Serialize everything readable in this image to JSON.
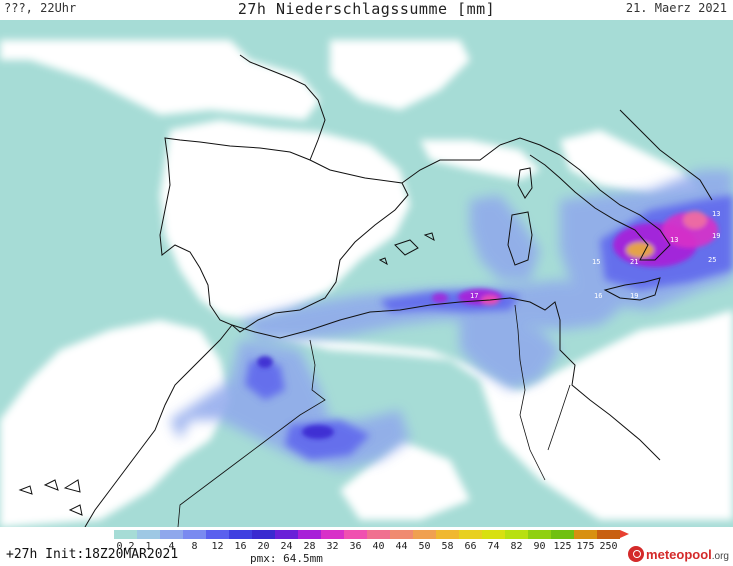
{
  "header": {
    "left": "???, 22Uhr",
    "title": "27h Niederschlagssumme [mm]",
    "right": "21. Maerz 2021"
  },
  "footer": {
    "run_label": "+27h Init:18Z20MAR2021",
    "pmax": "pmx: 64.5mm",
    "logo": "meteopool",
    "logo_suffix": ".org"
  },
  "legend": {
    "labels": [
      "0.2",
      "1",
      "4",
      "8",
      "12",
      "16",
      "20",
      "24",
      "28",
      "32",
      "36",
      "40",
      "44",
      "50",
      "58",
      "66",
      "74",
      "82",
      "90",
      "125",
      "175",
      "250"
    ],
    "colors": [
      "#a6dcd6",
      "#9ec8e4",
      "#8fa8ec",
      "#7a8af0",
      "#5a60ee",
      "#4040e0",
      "#3a2ad0",
      "#6a20d8",
      "#a820d8",
      "#d830c8",
      "#f050b0",
      "#f07090",
      "#f08a70",
      "#f0a050",
      "#f0b830",
      "#e8d020",
      "#d8e010",
      "#b8e010",
      "#90d010",
      "#70c010",
      "#d89010",
      "#c86010"
    ]
  },
  "map": {
    "cell_labels": [
      {
        "text": "13",
        "kind": "value"
      },
      {
        "text": "19",
        "kind": "value"
      },
      {
        "text": "25",
        "kind": "value"
      },
      {
        "text": "15",
        "kind": "value"
      },
      {
        "text": "21",
        "kind": "value"
      },
      {
        "text": "16",
        "kind": "value"
      },
      {
        "text": "19",
        "kind": "value"
      },
      {
        "text": "17",
        "kind": "value"
      },
      {
        "text": "13",
        "kind": "value"
      }
    ]
  }
}
